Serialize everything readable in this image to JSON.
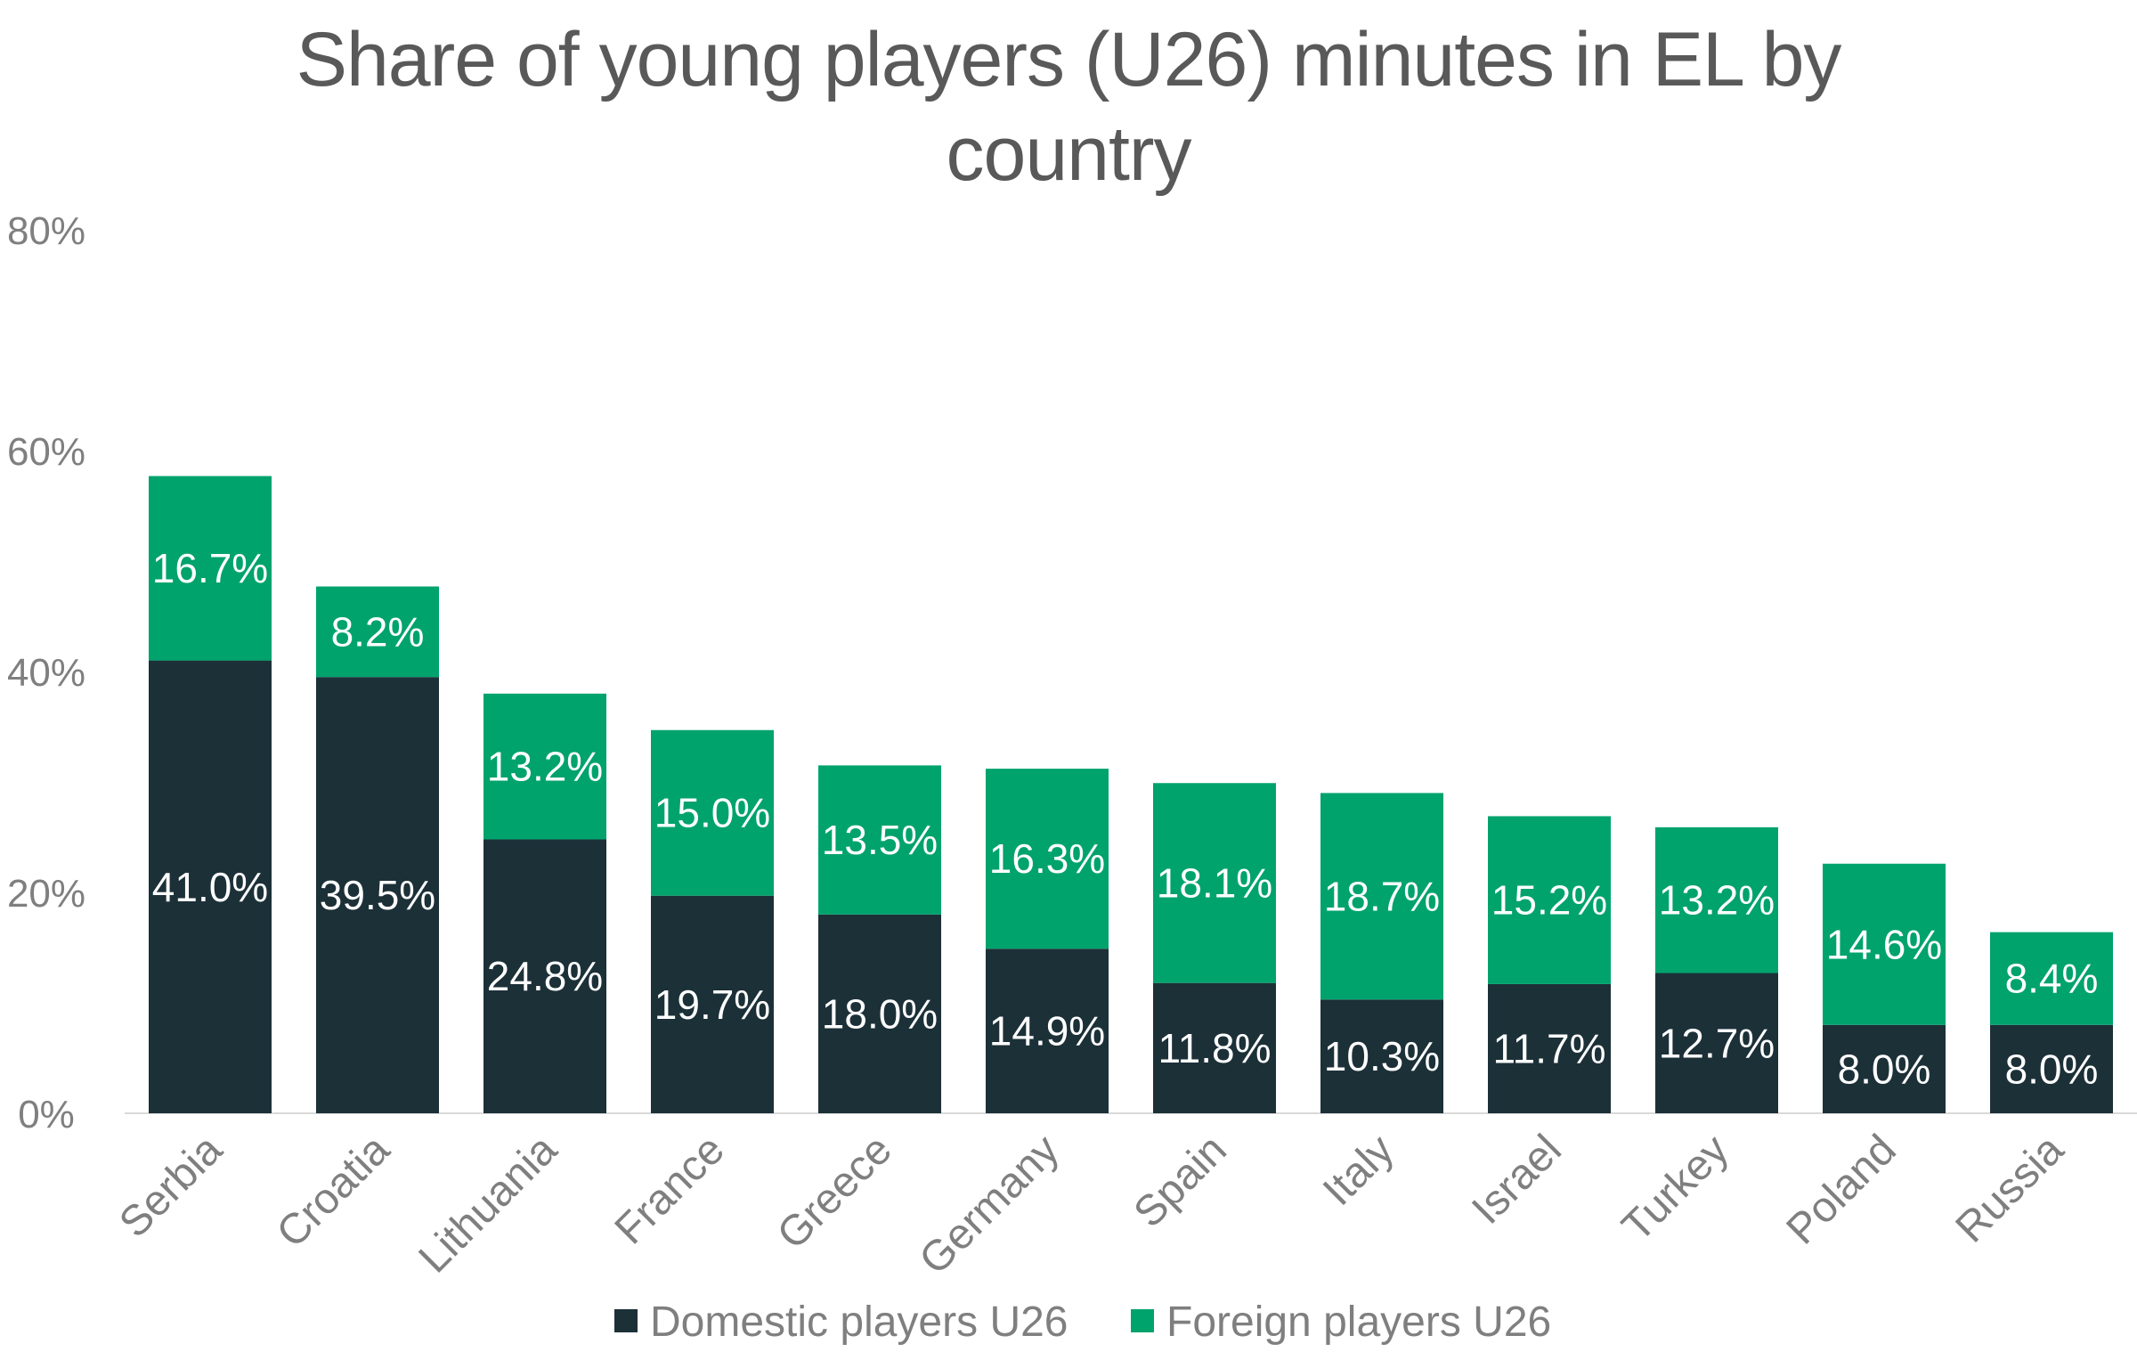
{
  "chart_data": {
    "type": "bar",
    "stacked": true,
    "title": "Share of young players (U26) minutes in EL by country",
    "categories": [
      "Serbia",
      "Croatia",
      "Lithuania",
      "France",
      "Greece",
      "Germany",
      "Spain",
      "Italy",
      "Israel",
      "Turkey",
      "Poland",
      "Russia"
    ],
    "series": [
      {
        "name": "Domestic players U26",
        "color": "#1c3038",
        "values": [
          41.0,
          39.5,
          24.8,
          19.7,
          18.0,
          14.9,
          11.8,
          10.3,
          11.7,
          12.7,
          8.0,
          8.0
        ],
        "labels": [
          "41.0%",
          "39.5%",
          "24.8%",
          "19.7%",
          "18.0%",
          "14.9%",
          "11.8%",
          "10.3%",
          "11.7%",
          "12.7%",
          "8.0%",
          "8.0%"
        ]
      },
      {
        "name": "Foreign players U26",
        "color": "#00a36c",
        "values": [
          16.7,
          8.2,
          13.2,
          15.0,
          13.5,
          16.3,
          18.1,
          18.7,
          15.2,
          13.2,
          14.6,
          8.4
        ],
        "labels": [
          "16.7%",
          "8.2%",
          "13.2%",
          "15.0%",
          "13.5%",
          "16.3%",
          "18.1%",
          "18.7%",
          "15.2%",
          "13.2%",
          "14.6%",
          "8.4%"
        ]
      }
    ],
    "ylim": [
      0,
      80
    ],
    "yticks": [
      0,
      20,
      40,
      60,
      80
    ],
    "ytick_labels": [
      "0%",
      "20%",
      "40%",
      "60%",
      "80%"
    ],
    "xlabel": "",
    "ylabel": "",
    "grid": false,
    "legend_position": "bottom"
  }
}
